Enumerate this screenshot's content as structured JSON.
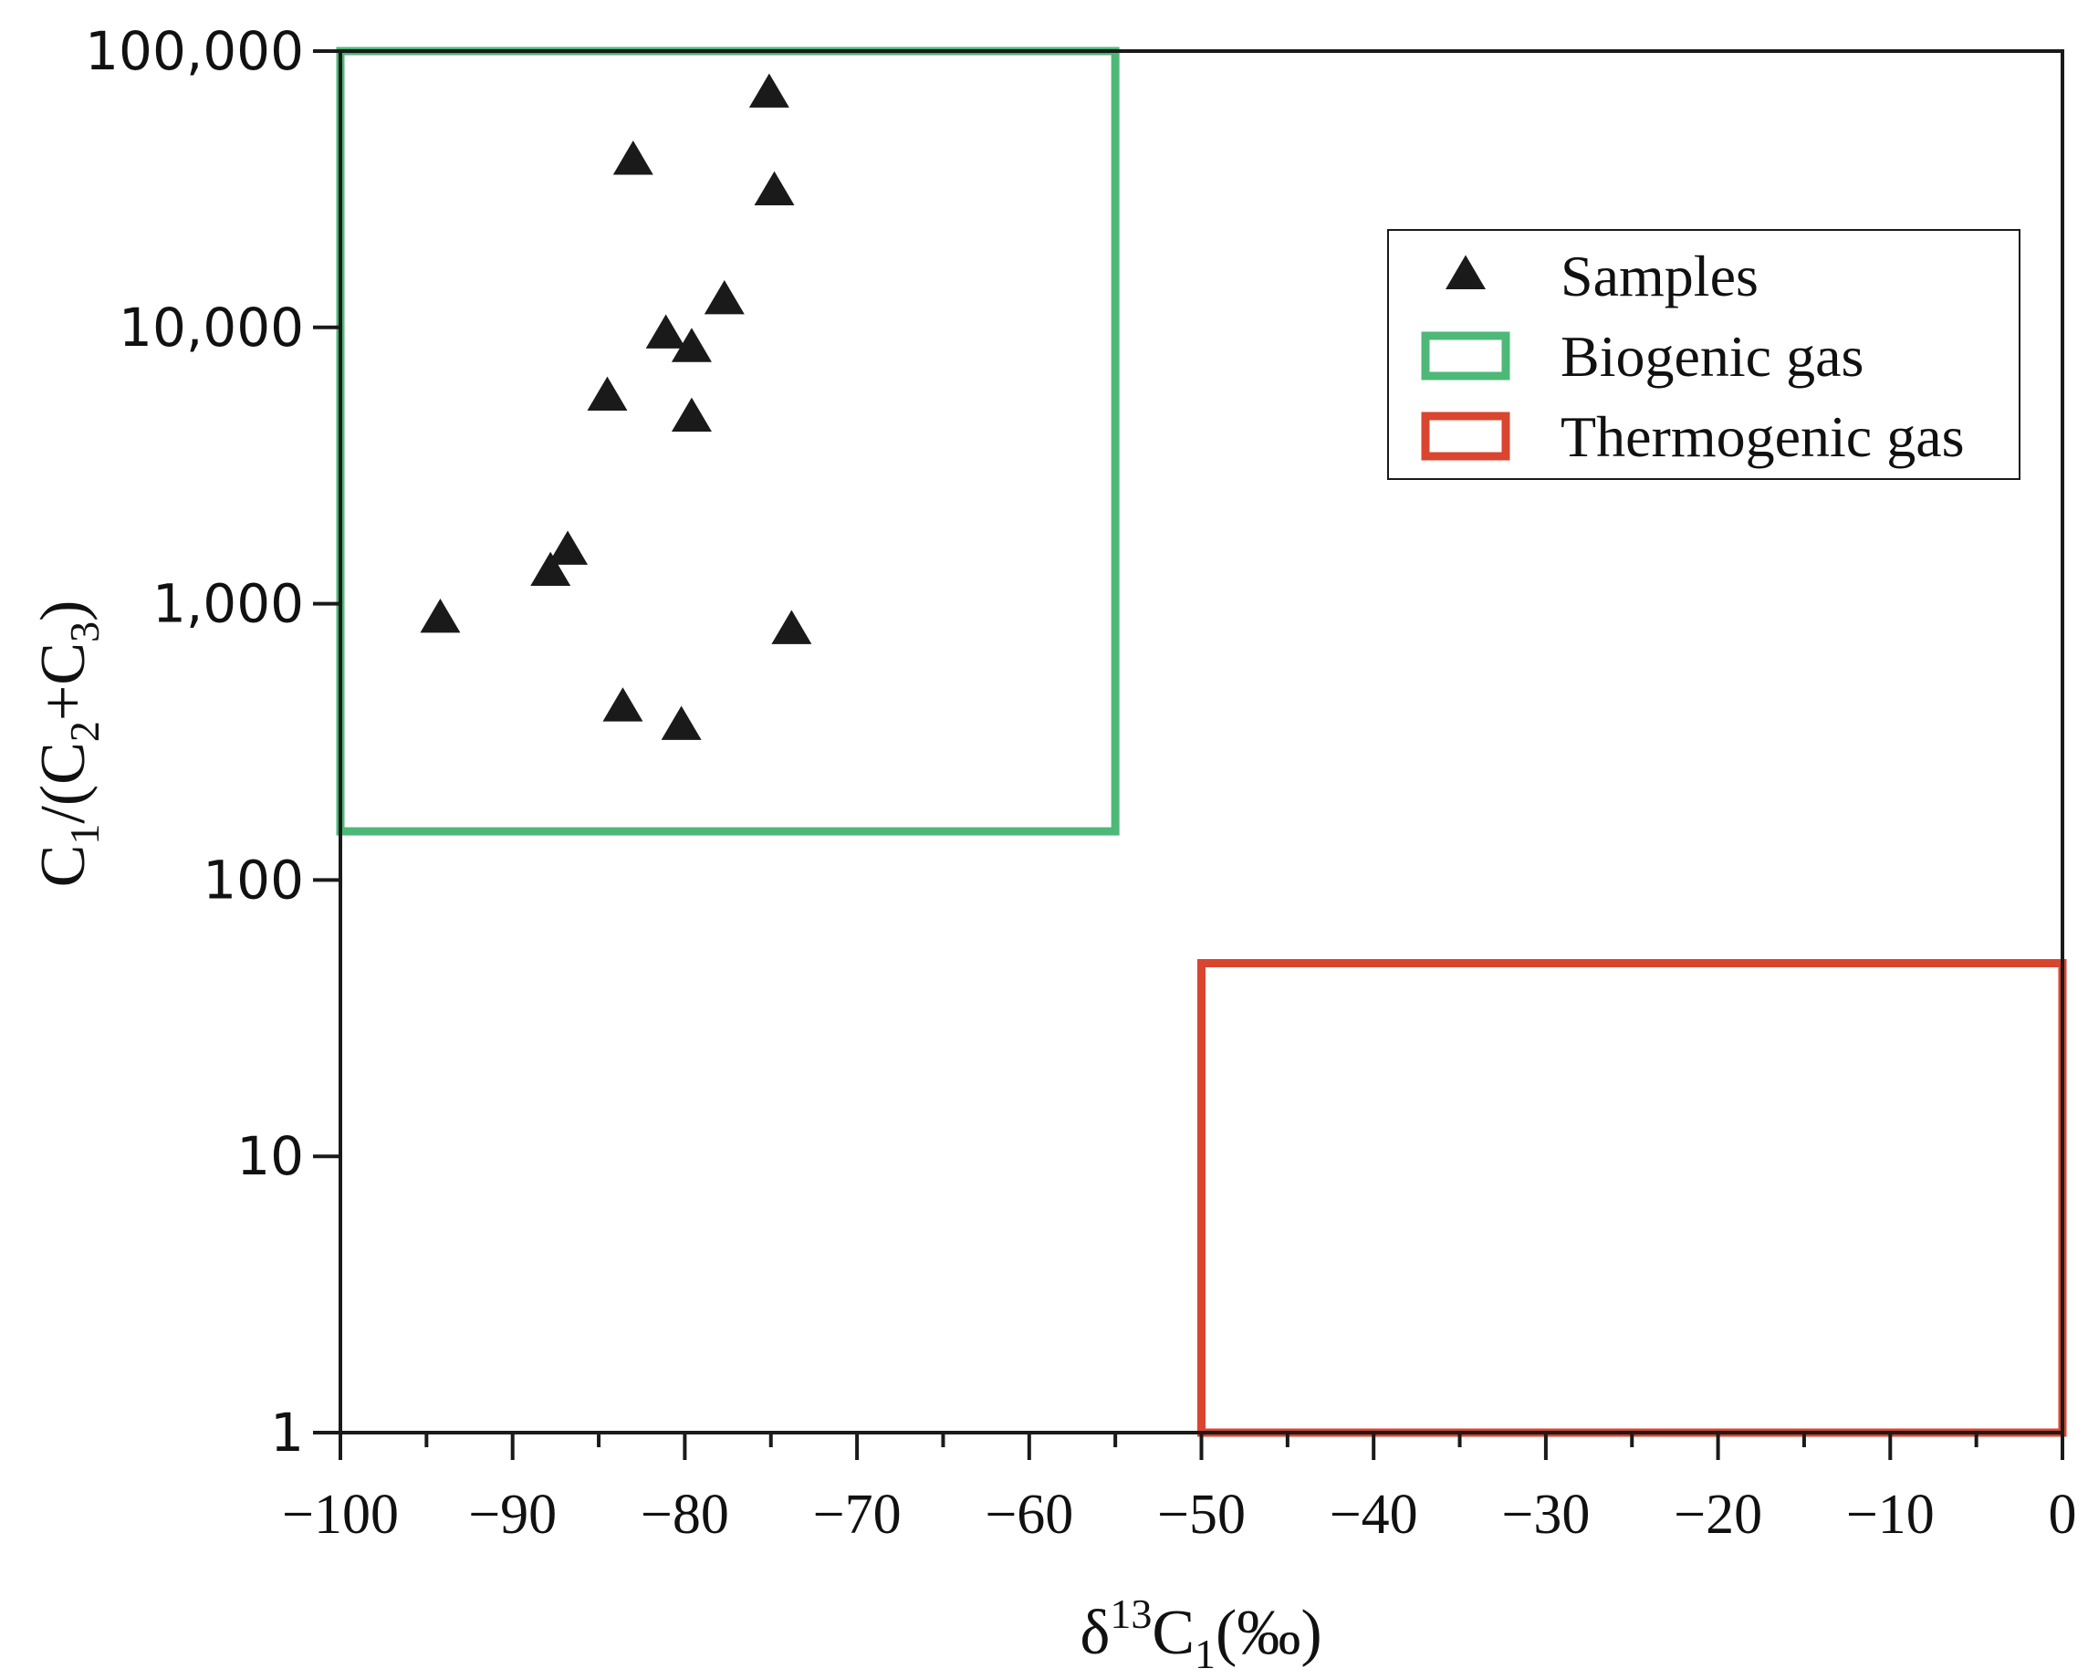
{
  "chart_data": {
    "type": "scatter",
    "xlabel": "δ13C1(‰)",
    "ylabel": "C1/(C2+C3)",
    "xlim": [
      -100,
      0
    ],
    "ylim": [
      1,
      100000
    ],
    "yscale": "log",
    "x_ticks": [
      -100,
      -90,
      -80,
      -70,
      -60,
      -50,
      -40,
      -30,
      -20,
      -10,
      0
    ],
    "x_tick_labels": [
      "−100",
      "−90",
      "−80",
      "−70",
      "−60",
      "−50",
      "−40",
      "−30",
      "−20",
      "−10",
      "0"
    ],
    "y_ticks": [
      1,
      10,
      100,
      1000,
      10000,
      100000
    ],
    "y_tick_labels": [
      "1",
      "10",
      "100",
      "1,000",
      "10,000",
      "100,000"
    ],
    "grid": false,
    "legend_position": "top-right",
    "legend": [
      {
        "label": "Samples",
        "marker": "triangle",
        "color": "#1a1a1a"
      },
      {
        "label": "Biogenic gas",
        "marker": "rectangle",
        "color": "#4db877"
      },
      {
        "label": "Thermogenic gas",
        "marker": "rectangle",
        "color": "#d9452f"
      }
    ],
    "series": [
      {
        "name": "Samples",
        "marker": "triangle",
        "color": "#1a1a1a",
        "points": [
          {
            "x": -75.1,
            "y": 70000
          },
          {
            "x": -83.0,
            "y": 40000
          },
          {
            "x": -74.8,
            "y": 31000
          },
          {
            "x": -77.7,
            "y": 12500
          },
          {
            "x": -81.1,
            "y": 9400
          },
          {
            "x": -79.6,
            "y": 8400
          },
          {
            "x": -84.5,
            "y": 5600
          },
          {
            "x": -79.6,
            "y": 4700
          },
          {
            "x": -86.8,
            "y": 1550
          },
          {
            "x": -87.8,
            "y": 1300
          },
          {
            "x": -94.2,
            "y": 880
          },
          {
            "x": -73.8,
            "y": 800
          },
          {
            "x": -83.6,
            "y": 420
          },
          {
            "x": -80.2,
            "y": 360
          }
        ]
      }
    ],
    "regions": [
      {
        "name": "Biogenic gas",
        "color": "#4db877",
        "x": [
          -100,
          -55
        ],
        "y": [
          150,
          100000
        ]
      },
      {
        "name": "Thermogenic gas",
        "color": "#d9452f",
        "x": [
          -50,
          0
        ],
        "y": [
          1,
          50
        ]
      }
    ]
  }
}
